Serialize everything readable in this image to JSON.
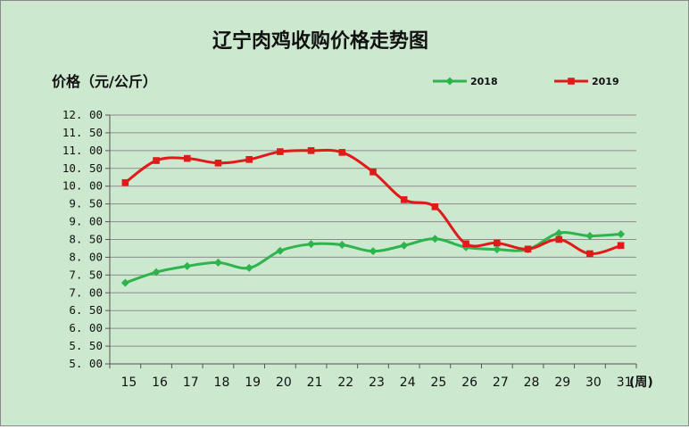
{
  "chart_data": {
    "type": "line",
    "title": "辽宁肉鸡收购价格走势图",
    "ylabel": "价格（元/公斤）",
    "xunit": "(周)",
    "x": [
      15,
      16,
      17,
      18,
      19,
      20,
      21,
      22,
      23,
      24,
      25,
      26,
      27,
      28,
      29,
      30,
      31
    ],
    "ylim": [
      5,
      12
    ],
    "ystep": 0.5,
    "grid": true,
    "legend_position": "top-right",
    "series": [
      {
        "name": "2018",
        "color": "#2db44d",
        "marker": "diamond",
        "values": [
          7.28,
          7.58,
          7.75,
          7.85,
          7.7,
          8.18,
          8.37,
          8.35,
          8.17,
          8.33,
          8.52,
          8.28,
          8.22,
          8.22,
          8.68,
          8.6,
          8.65
        ]
      },
      {
        "name": "2019",
        "color": "#e01919",
        "marker": "square",
        "values": [
          10.1,
          10.72,
          10.78,
          10.65,
          10.75,
          10.97,
          11.0,
          10.95,
          10.4,
          9.62,
          9.42,
          8.38,
          8.4,
          8.23,
          8.5,
          8.1,
          8.33
        ]
      }
    ]
  }
}
